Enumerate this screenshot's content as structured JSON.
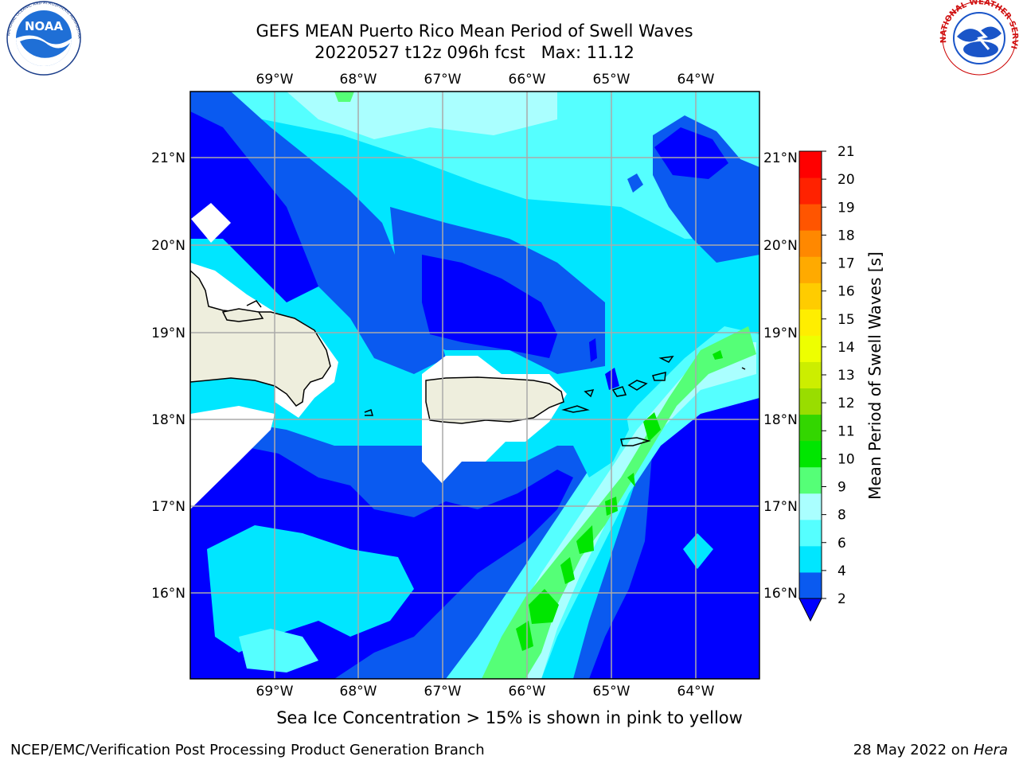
{
  "header": {
    "title_line1": "GEFS MEAN Puerto Rico Mean Period of Swell Waves",
    "title_line2": "20220527 t12z 096h fcst   Max: 11.12"
  },
  "logos": {
    "left": {
      "text": "NOAA",
      "ring_text": "NATIONAL OCEANIC AND ATMOSPHERIC ADMINISTRATION · U.S. DEPARTMENT OF COMMERCE"
    },
    "right": {
      "ring_text": "NATIONAL WEATHER SERVICE"
    }
  },
  "map": {
    "lon_labels": [
      "69°W",
      "68°W",
      "67°W",
      "66°W",
      "65°W",
      "64°W"
    ],
    "lat_labels": [
      "21°N",
      "20°N",
      "19°N",
      "18°N",
      "17°N",
      "16°N"
    ],
    "colors": {
      "deep_blue": "#0000ff",
      "blue": "#0a5af0",
      "cyan": "#00e6ff",
      "light_cyan": "#55ffff",
      "pale_cyan": "#aaffff",
      "green_light": "#55ff77",
      "green": "#00e600",
      "land": "#eeeedd",
      "grid": "#aaaaaa"
    }
  },
  "colorbar": {
    "label": "Mean Period of Swell Waves [s]",
    "ticks": [
      "21",
      "20",
      "19",
      "18",
      "17",
      "16",
      "15",
      "14",
      "13",
      "12",
      "11",
      "10",
      "9",
      "8",
      "6",
      "4",
      "2"
    ],
    "colors": [
      "#0000ff",
      "#0a5af0",
      "#00e6ff",
      "#55ffff",
      "#aaffff",
      "#55ff77",
      "#00e600",
      "#33d600",
      "#99dd00",
      "#ccee00",
      "#eeff00",
      "#ffee00",
      "#ffcc00",
      "#ffaa00",
      "#ff8800",
      "#ff5500",
      "#ff2200",
      "#ff0000"
    ]
  },
  "note": "Sea Ice Concentration > 15% is shown in pink to yellow",
  "footer": {
    "left": "NCEP/EMC/Verification Post Processing Product Generation Branch",
    "right_prefix": "28 May 2022 on ",
    "right_italic": "Hera"
  }
}
